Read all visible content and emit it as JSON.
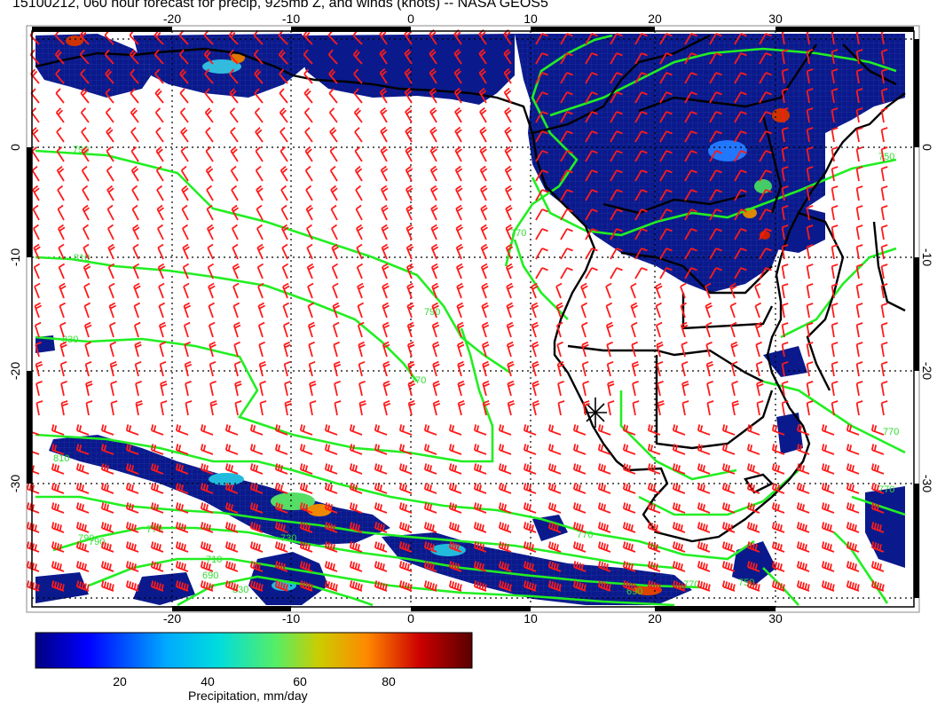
{
  "title": "15100212, 060 hour forecast for precip, 925mb Z, and winds (knots) -- NASA GEOS5",
  "map": {
    "lon_labels": [
      "-20",
      "-10",
      "0",
      "10",
      "20",
      "30"
    ],
    "lon_values": [
      -20,
      -10,
      0,
      10,
      20,
      30
    ],
    "lat_labels": [
      "0",
      "-10",
      "-20",
      "-30"
    ],
    "lat_values": [
      0,
      -10,
      -20,
      -30
    ],
    "lon_range": [
      -30.5,
      40
    ],
    "lat_range": [
      -40,
      10
    ],
    "contour_labels": [
      "790",
      "810",
      "830",
      "790",
      "770",
      "770",
      "790",
      "750",
      "770",
      "810",
      "790",
      "770",
      "730",
      "710",
      "690",
      "830",
      "770",
      "770",
      "750",
      "770",
      "690"
    ],
    "colors": {
      "precip_low": "#0a1a8c",
      "contours": "#22ee22",
      "wind_barbs": "#ff1a1a",
      "coastline": "#000000"
    },
    "marker": "cross-marker"
  },
  "colorbar": {
    "title": "Precipitation, mm/day",
    "tick_labels": [
      "20",
      "40",
      "60",
      "80"
    ],
    "tick_values": [
      20,
      40,
      60,
      80
    ],
    "range": [
      0,
      100
    ],
    "stops": [
      "#000080",
      "#0000ff",
      "#00aaff",
      "#00dddd",
      "#55ee66",
      "#cccc00",
      "#ff8800",
      "#cc0000",
      "#5a0000"
    ]
  }
}
